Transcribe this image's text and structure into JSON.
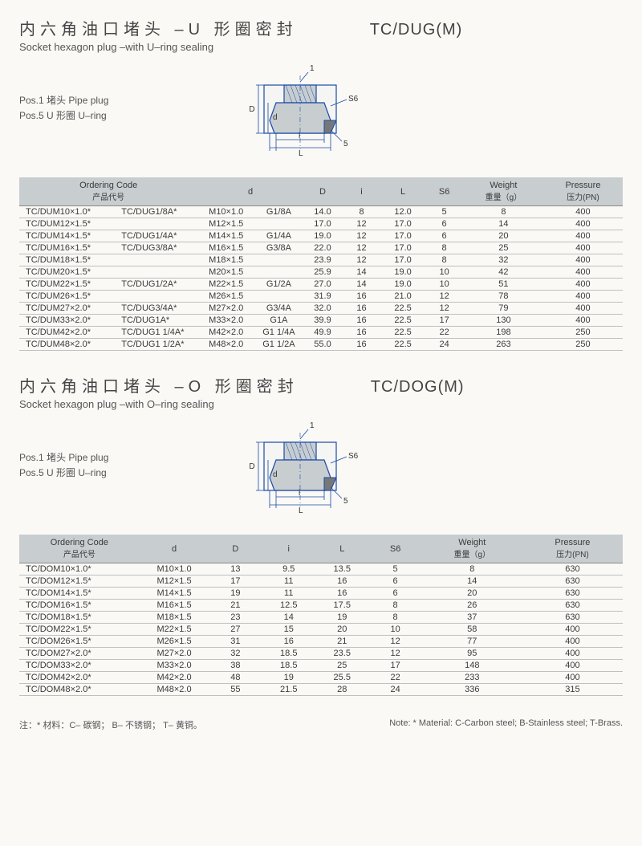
{
  "section1": {
    "title_cn": "内六角油口堵头 –U 形圈密封",
    "title_code": "TC/DUG(M)",
    "title_en": "Socket hexagon plug –with U–ring sealing",
    "pos1": "Pos.1 堵头 Pipe plug",
    "pos5": "Pos.5 U 形圈 U–ring",
    "diagram": {
      "stroke": "#1a4aa8",
      "fill": "#c8cdd0",
      "labels": {
        "one": "1",
        "D": "D",
        "d": "d",
        "S6": "S6",
        "i": "i",
        "L": "L",
        "five": "5"
      }
    },
    "table": {
      "headers": {
        "code": "Ordering Code",
        "code_sub": "产品代号",
        "d": "d",
        "D": "D",
        "i": "i",
        "L": "L",
        "S6": "S6",
        "weight": "Weight",
        "weight_sub": "重量（g）",
        "pressure": "Pressure",
        "pressure_sub": "压力(PN)"
      },
      "col_widths": [
        "110",
        "90",
        "62",
        "52",
        "40",
        "40",
        "46",
        "40",
        "90",
        "90"
      ],
      "rows": [
        [
          "TC/DUM10×1.0*",
          "TC/DUG1/8A*",
          "M10×1.0",
          "G1/8A",
          "14.0",
          "8",
          "12.0",
          "5",
          "8",
          "400"
        ],
        [
          "TC/DUM12×1.5*",
          "",
          "M12×1.5",
          "",
          "17.0",
          "12",
          "17.0",
          "6",
          "14",
          "400"
        ],
        [
          "TC/DUM14×1.5*",
          "TC/DUG1/4A*",
          "M14×1.5",
          "G1/4A",
          "19.0",
          "12",
          "17.0",
          "6",
          "20",
          "400"
        ],
        [
          "TC/DUM16×1.5*",
          "TC/DUG3/8A*",
          "M16×1.5",
          "G3/8A",
          "22.0",
          "12",
          "17.0",
          "8",
          "25",
          "400"
        ],
        [
          "TC/DUM18×1.5*",
          "",
          "M18×1.5",
          "",
          "23.9",
          "12",
          "17.0",
          "8",
          "32",
          "400"
        ],
        [
          "TC/DUM20×1.5*",
          "",
          "M20×1.5",
          "",
          "25.9",
          "14",
          "19.0",
          "10",
          "42",
          "400"
        ],
        [
          "TC/DUM22×1.5*",
          "TC/DUG1/2A*",
          "M22×1.5",
          "G1/2A",
          "27.0",
          "14",
          "19.0",
          "10",
          "51",
          "400"
        ],
        [
          "TC/DUM26×1.5*",
          "",
          "M26×1.5",
          "",
          "31.9",
          "16",
          "21.0",
          "12",
          "78",
          "400"
        ],
        [
          "TC/DUM27×2.0*",
          "TC/DUG3/4A*",
          "M27×2.0",
          "G3/4A",
          "32.0",
          "16",
          "22.5",
          "12",
          "79",
          "400"
        ],
        [
          "TC/DUM33×2.0*",
          "TC/DUG1A*",
          "M33×2.0",
          "G1A",
          "39.9",
          "16",
          "22.5",
          "17",
          "130",
          "400"
        ],
        [
          "TC/DUM42×2.0*",
          "TC/DUG1 1/4A*",
          "M42×2.0",
          "G1 1/4A",
          "49.9",
          "16",
          "22.5",
          "22",
          "198",
          "250"
        ],
        [
          "TC/DUM48×2.0*",
          "TC/DUG1 1/2A*",
          "M48×2.0",
          "G1 1/2A",
          "55.0",
          "16",
          "22.5",
          "24",
          "263",
          "250"
        ]
      ]
    }
  },
  "section2": {
    "title_cn": "内六角油口堵头 –O 形圈密封",
    "title_code": "TC/DOG(M)",
    "title_en": "Socket hexagon plug –with O–ring sealing",
    "pos1": "Pos.1 堵头 Pipe plug",
    "pos5": "Pos.5 U 形圈 U–ring",
    "diagram": {
      "stroke": "#1a4aa8",
      "fill": "#c8cdd0",
      "labels": {
        "one": "1",
        "D": "D",
        "d": "d",
        "S6": "S6",
        "i": "i",
        "L": "L",
        "five": "5"
      }
    },
    "table": {
      "headers": {
        "code": "Ordering Code",
        "code_sub": "产品代号",
        "d": "d",
        "D": "D",
        "i": "i",
        "L": "L",
        "S6": "S6",
        "weight": "Weight",
        "weight_sub": "重量（g）",
        "pressure": "Pressure",
        "pressure_sub": "压力(PN)"
      },
      "col_widths": [
        "140",
        "80",
        "60",
        "60",
        "60",
        "60",
        "120",
        "120"
      ],
      "rows": [
        [
          "TC/DOM10×1.0*",
          "M10×1.0",
          "13",
          "9.5",
          "13.5",
          "5",
          "8",
          "630"
        ],
        [
          "TC/DOM12×1.5*",
          "M12×1.5",
          "17",
          "11",
          "16",
          "6",
          "14",
          "630"
        ],
        [
          "TC/DOM14×1.5*",
          "M14×1.5",
          "19",
          "11",
          "16",
          "6",
          "20",
          "630"
        ],
        [
          "TC/DOM16×1.5*",
          "M16×1.5",
          "21",
          "12.5",
          "17.5",
          "8",
          "26",
          "630"
        ],
        [
          "TC/DOM18×1.5*",
          "M18×1.5",
          "23",
          "14",
          "19",
          "8",
          "37",
          "630"
        ],
        [
          "TC/DOM22×1.5*",
          "M22×1.5",
          "27",
          "15",
          "20",
          "10",
          "58",
          "400"
        ],
        [
          "TC/DOM26×1.5*",
          "M26×1.5",
          "31",
          "16",
          "21",
          "12",
          "77",
          "400"
        ],
        [
          "TC/DOM27×2.0*",
          "M27×2.0",
          "32",
          "18.5",
          "23.5",
          "12",
          "95",
          "400"
        ],
        [
          "TC/DOM33×2.0*",
          "M33×2.0",
          "38",
          "18.5",
          "25",
          "17",
          "148",
          "400"
        ],
        [
          "TC/DOM42×2.0*",
          "M42×2.0",
          "48",
          "19",
          "25.5",
          "22",
          "233",
          "400"
        ],
        [
          "TC/DOM48×2.0*",
          "M48×2.0",
          "55",
          "21.5",
          "28",
          "24",
          "336",
          "315"
        ]
      ]
    }
  },
  "footnote": {
    "cn": "注：* 材料：C– 碳钢；  B– 不锈钢；  T– 黄铜。",
    "en": "Note: * Material: C-Carbon steel; B-Stainless steel; T-Brass."
  }
}
